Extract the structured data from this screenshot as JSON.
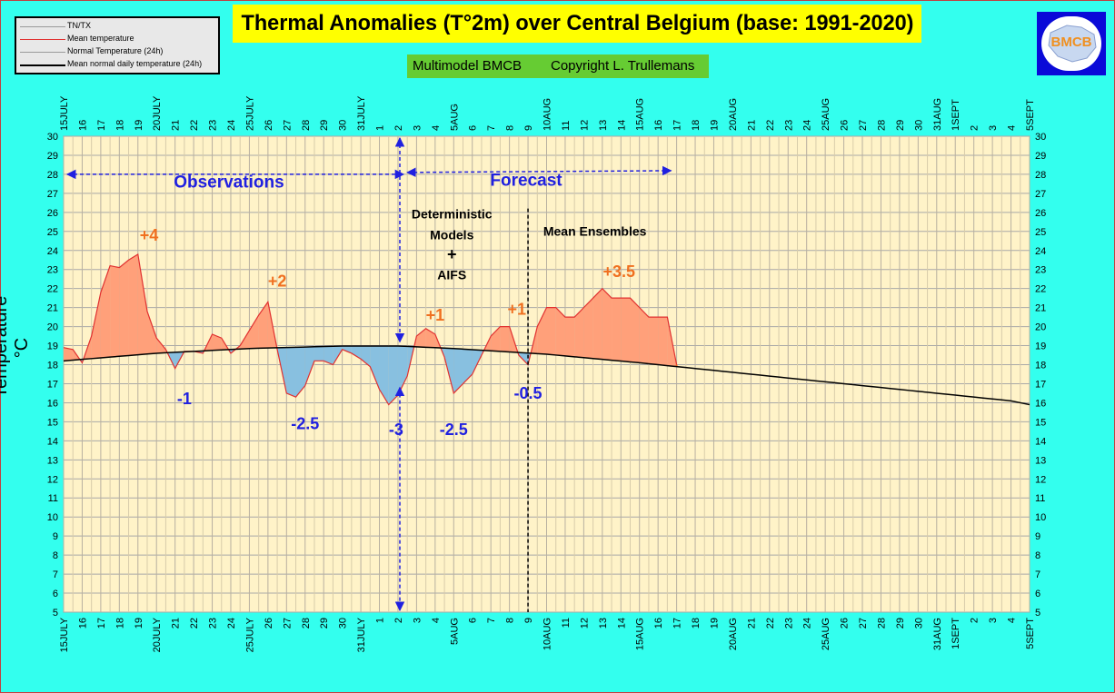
{
  "title": "Thermal Anomalies (T°2m) over Central Belgium (base: 1991-2020)",
  "subtitle": {
    "model": "Multimodel BMCB",
    "copyright": "Copyright L. Trullemans"
  },
  "logo_text": "BMCB",
  "legend": [
    {
      "label": "TN/TX",
      "color": "#888888"
    },
    {
      "label": "Mean temperature",
      "color": "#e03030"
    },
    {
      "label": "Normal Temperature (24h)",
      "color": "#9a9a9a"
    },
    {
      "label": "Mean normal daily temperature (24h)",
      "color": "#000000"
    }
  ],
  "chart_data": {
    "type": "area",
    "ylabel": "Temperature °C",
    "ylim": [
      5,
      30
    ],
    "grid": true,
    "x_tick_labels": [
      "15JULY",
      "16",
      "17",
      "18",
      "19",
      "20JULY",
      "21",
      "22",
      "23",
      "24",
      "25JULY",
      "26",
      "27",
      "28",
      "29",
      "30",
      "31JULY",
      "1",
      "2",
      "3",
      "4",
      "5AUG",
      "6",
      "7",
      "8",
      "9",
      "10AUG",
      "11",
      "12",
      "13",
      "14",
      "15AUG",
      "16",
      "17",
      "18",
      "19",
      "20AUG",
      "21",
      "22",
      "23",
      "24",
      "25AUG",
      "26",
      "27",
      "28",
      "29",
      "30",
      "31AUG",
      "1SEPT",
      "2",
      "3",
      "4",
      "5SEPT"
    ],
    "series": [
      {
        "name": "Mean temperature",
        "x": [
          0,
          0.5,
          1,
          1.5,
          2,
          2.5,
          3,
          3.5,
          4,
          4.5,
          5,
          5.5,
          6,
          6.5,
          7,
          7.5,
          8,
          8.5,
          9,
          9.5,
          10,
          10.5,
          11,
          11.5,
          12,
          12.5,
          13,
          13.5,
          14,
          14.5,
          15,
          15.5,
          16,
          16.5,
          17,
          17.5,
          18,
          18.5,
          19,
          19.5,
          20,
          20.5,
          21,
          21.5,
          22,
          22.5,
          23,
          23.5,
          24,
          24.5,
          25,
          25.5,
          26,
          26.5,
          27,
          27.5,
          28,
          28.5,
          29,
          29.5,
          30,
          30.5,
          31,
          31.5,
          32,
          32.5,
          33
        ],
        "values": [
          18.9,
          18.8,
          18.1,
          19.5,
          21.8,
          23.2,
          23.1,
          23.5,
          23.8,
          20.8,
          19.4,
          18.8,
          17.8,
          18.7,
          18.7,
          18.6,
          19.6,
          19.4,
          18.6,
          19.0,
          19.8,
          20.6,
          21.3,
          18.8,
          16.5,
          16.3,
          16.9,
          18.2,
          18.2,
          18.0,
          18.8,
          18.6,
          18.3,
          17.9,
          16.7,
          15.9,
          16.4,
          17.4,
          19.5,
          19.9,
          19.6,
          18.4,
          16.5,
          17.0,
          17.5,
          18.5,
          19.5,
          20.0,
          20.0,
          18.5,
          18.0,
          20.0,
          21.0,
          21.0,
          20.5,
          20.5,
          21.0,
          21.5,
          22.0,
          21.5,
          21.5,
          21.5,
          21.0,
          20.5,
          20.5,
          20.5,
          18.0
        ]
      },
      {
        "name": "Mean normal daily temperature (24h)",
        "x": [
          0,
          5,
          10,
          15,
          18,
          21,
          26,
          31,
          36,
          41,
          46,
          51,
          52
        ],
        "values": [
          18.2,
          18.6,
          18.85,
          18.98,
          18.98,
          18.85,
          18.55,
          18.1,
          17.6,
          17.1,
          16.6,
          16.1,
          15.9
        ]
      }
    ],
    "annotations": [
      {
        "text": "+4",
        "x": 4.6,
        "y": 24.8,
        "color": "#f07020"
      },
      {
        "text": "+2",
        "x": 11.5,
        "y": 22.4,
        "color": "#f07020"
      },
      {
        "text": "+1",
        "x": 20.0,
        "y": 20.6,
        "color": "#f07020"
      },
      {
        "text": "+1",
        "x": 24.4,
        "y": 20.9,
        "color": "#f07020"
      },
      {
        "text": "+3.5",
        "x": 29.9,
        "y": 22.9,
        "color": "#f07020"
      },
      {
        "text": "-1",
        "x": 6.5,
        "y": 16.2,
        "color": "#2020e0"
      },
      {
        "text": "-2.5",
        "x": 13.0,
        "y": 14.9,
        "color": "#2020e0"
      },
      {
        "text": "-3",
        "x": 17.9,
        "y": 14.6,
        "color": "#2020e0"
      },
      {
        "text": "-2.5",
        "x": 21.0,
        "y": 14.6,
        "color": "#2020e0"
      },
      {
        "text": "-0.5",
        "x": 25.0,
        "y": 16.5,
        "color": "#2020e0"
      },
      {
        "text": "Observations",
        "x": 8.9,
        "y": 27.6,
        "color": "#2020e0"
      },
      {
        "text": "Forecast",
        "x": 24.9,
        "y": 27.7,
        "color": "#2020e0"
      },
      {
        "text": "Deterministic",
        "x": 20.9,
        "y": 25.9,
        "color": "#000000"
      },
      {
        "text": "Models",
        "x": 20.9,
        "y": 24.8,
        "color": "#000000"
      },
      {
        "text": "+",
        "x": 20.9,
        "y": 23.8,
        "color": "#000000"
      },
      {
        "text": "AIFS",
        "x": 20.9,
        "y": 22.7,
        "color": "#000000"
      },
      {
        "text": "Mean Ensembles",
        "x": 28.6,
        "y": 25.0,
        "color": "#000000"
      }
    ],
    "markers": {
      "observations_range": [
        0,
        18.3
      ],
      "forecast_range": [
        18.5,
        32.7
      ],
      "now_x": 18.1,
      "ensemble_start_x": 25.0,
      "arrow_y": 28
    }
  }
}
